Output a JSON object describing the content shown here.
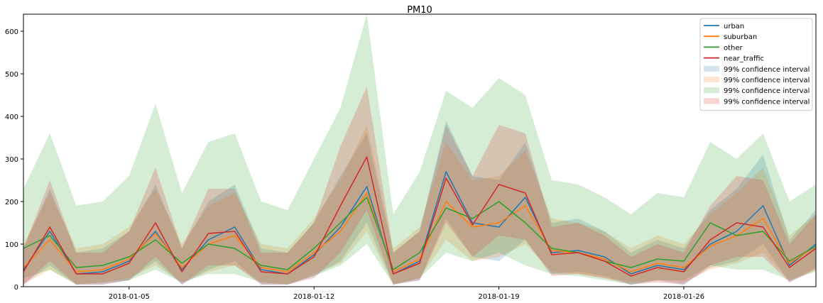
{
  "chart_data": {
    "type": "line",
    "title": "PM10",
    "xlabel": "",
    "ylabel": "",
    "x_range": [
      "2018-01-01",
      "2018-01-31"
    ],
    "ylim": [
      0,
      640
    ],
    "y_ticks": [
      0,
      100,
      200,
      300,
      400,
      500,
      600
    ],
    "x_ticks": [
      "2018-01-05",
      "2018-01-12",
      "2018-01-19",
      "2018-01-26"
    ],
    "grid": false,
    "legend_position": "top-right",
    "legend": {
      "lines": [
        "urban",
        "suburban",
        "other",
        "near_traffic"
      ],
      "bands": [
        "99% confidence interval",
        "99% confidence interval",
        "99% confidence interval",
        "99% confidence interval"
      ]
    },
    "colors": {
      "urban": "#1f77b4",
      "suburban": "#ff7f0e",
      "other": "#2ca02c",
      "near_traffic": "#d62728"
    },
    "series": [
      {
        "name": "urban",
        "x": [
          "2018-01-01",
          "2018-01-02",
          "2018-01-03",
          "2018-01-04",
          "2018-01-05",
          "2018-01-06",
          "2018-01-07",
          "2018-01-08",
          "2018-01-09",
          "2018-01-10",
          "2018-01-11",
          "2018-01-12",
          "2018-01-13",
          "2018-01-14",
          "2018-01-15",
          "2018-01-16",
          "2018-01-17",
          "2018-01-18",
          "2018-01-19",
          "2018-01-20",
          "2018-01-21",
          "2018-01-22",
          "2018-01-23",
          "2018-01-24",
          "2018-01-25",
          "2018-01-26",
          "2018-01-27",
          "2018-01-28",
          "2018-01-29",
          "2018-01-30",
          "2018-01-31"
        ],
        "values": [
          40,
          130,
          30,
          35,
          60,
          130,
          40,
          110,
          140,
          40,
          30,
          75,
          140,
          235,
          30,
          60,
          270,
          150,
          140,
          210,
          80,
          85,
          70,
          30,
          50,
          40,
          100,
          130,
          190,
          50,
          100
        ]
      },
      {
        "name": "suburban",
        "x": [
          "2018-01-01",
          "2018-01-02",
          "2018-01-03",
          "2018-01-04",
          "2018-01-05",
          "2018-01-06",
          "2018-01-07",
          "2018-01-08",
          "2018-01-09",
          "2018-01-10",
          "2018-01-11",
          "2018-01-12",
          "2018-01-13",
          "2018-01-14",
          "2018-01-15",
          "2018-01-16",
          "2018-01-17",
          "2018-01-18",
          "2018-01-19",
          "2018-01-20",
          "2018-01-21",
          "2018-01-22",
          "2018-01-23",
          "2018-01-24",
          "2018-01-25",
          "2018-01-26",
          "2018-01-27",
          "2018-01-28",
          "2018-01-29",
          "2018-01-30",
          "2018-01-31"
        ],
        "values": [
          45,
          110,
          35,
          40,
          65,
          125,
          45,
          100,
          120,
          45,
          35,
          80,
          130,
          220,
          35,
          65,
          200,
          140,
          150,
          190,
          85,
          80,
          65,
          35,
          55,
          45,
          95,
          120,
          160,
          55,
          95
        ]
      },
      {
        "name": "other",
        "x": [
          "2018-01-01",
          "2018-01-02",
          "2018-01-03",
          "2018-01-04",
          "2018-01-05",
          "2018-01-06",
          "2018-01-07",
          "2018-01-08",
          "2018-01-09",
          "2018-01-10",
          "2018-01-11",
          "2018-01-12",
          "2018-01-13",
          "2018-01-14",
          "2018-01-15",
          "2018-01-16",
          "2018-01-17",
          "2018-01-18",
          "2018-01-19",
          "2018-01-20",
          "2018-01-21",
          "2018-01-22",
          "2018-01-23",
          "2018-01-24",
          "2018-01-25",
          "2018-01-26",
          "2018-01-27",
          "2018-01-28",
          "2018-01-29",
          "2018-01-30",
          "2018-01-31"
        ],
        "values": [
          90,
          120,
          45,
          50,
          70,
          110,
          55,
          100,
          90,
          50,
          40,
          90,
          150,
          210,
          40,
          80,
          185,
          160,
          200,
          150,
          90,
          80,
          60,
          45,
          65,
          60,
          150,
          120,
          130,
          60,
          95
        ]
      },
      {
        "name": "near_traffic",
        "x": [
          "2018-01-01",
          "2018-01-02",
          "2018-01-03",
          "2018-01-04",
          "2018-01-05",
          "2018-01-06",
          "2018-01-07",
          "2018-01-08",
          "2018-01-09",
          "2018-01-10",
          "2018-01-11",
          "2018-01-12",
          "2018-01-13",
          "2018-01-14",
          "2018-01-15",
          "2018-01-16",
          "2018-01-17",
          "2018-01-18",
          "2018-01-19",
          "2018-01-20",
          "2018-01-21",
          "2018-01-22",
          "2018-01-23",
          "2018-01-24",
          "2018-01-25",
          "2018-01-26",
          "2018-01-27",
          "2018-01-28",
          "2018-01-29",
          "2018-01-30",
          "2018-01-31"
        ],
        "values": [
          35,
          140,
          30,
          30,
          55,
          150,
          35,
          125,
          130,
          35,
          30,
          70,
          190,
          305,
          30,
          55,
          255,
          145,
          240,
          220,
          75,
          80,
          60,
          25,
          45,
          35,
          110,
          150,
          140,
          45,
          90
        ]
      }
    ],
    "confidence_bands": [
      {
        "series": "urban",
        "lower": [
          5,
          50,
          5,
          5,
          15,
          60,
          5,
          40,
          60,
          5,
          5,
          25,
          60,
          150,
          5,
          15,
          160,
          70,
          60,
          110,
          30,
          35,
          25,
          5,
          15,
          5,
          45,
          60,
          100,
          10,
          45
        ],
        "upper": [
          90,
          230,
          80,
          90,
          130,
          240,
          90,
          200,
          240,
          90,
          80,
          150,
          260,
          360,
          80,
          130,
          390,
          260,
          250,
          340,
          150,
          160,
          130,
          80,
          110,
          90,
          180,
          230,
          310,
          110,
          180
        ]
      },
      {
        "series": "suburban",
        "lower": [
          5,
          40,
          5,
          10,
          20,
          50,
          10,
          35,
          50,
          10,
          5,
          30,
          55,
          130,
          5,
          20,
          110,
          60,
          70,
          100,
          35,
          30,
          20,
          10,
          15,
          10,
          40,
          55,
          80,
          15,
          40
        ],
        "upper": [
          100,
          220,
          90,
          100,
          140,
          230,
          100,
          190,
          220,
          100,
          90,
          160,
          250,
          380,
          90,
          140,
          340,
          250,
          260,
          320,
          160,
          150,
          130,
          90,
          120,
          100,
          170,
          220,
          280,
          120,
          170
        ]
      },
      {
        "series": "other",
        "lower": [
          20,
          40,
          5,
          10,
          15,
          40,
          10,
          30,
          30,
          10,
          5,
          25,
          50,
          100,
          5,
          20,
          80,
          60,
          80,
          50,
          30,
          25,
          15,
          5,
          15,
          15,
          50,
          40,
          40,
          15,
          35
        ],
        "upper": [
          230,
          360,
          190,
          200,
          260,
          430,
          220,
          340,
          360,
          200,
          180,
          300,
          420,
          640,
          170,
          270,
          460,
          420,
          490,
          450,
          250,
          240,
          210,
          170,
          220,
          210,
          340,
          300,
          360,
          200,
          240
        ]
      },
      {
        "series": "near_traffic",
        "lower": [
          5,
          60,
          5,
          5,
          15,
          70,
          5,
          50,
          50,
          5,
          5,
          20,
          80,
          180,
          5,
          15,
          150,
          70,
          120,
          110,
          25,
          30,
          20,
          5,
          10,
          5,
          50,
          70,
          70,
          10,
          40
        ],
        "upper": [
          90,
          250,
          80,
          80,
          130,
          280,
          90,
          230,
          230,
          80,
          80,
          150,
          330,
          470,
          80,
          130,
          380,
          260,
          380,
          360,
          140,
          150,
          120,
          70,
          100,
          80,
          190,
          260,
          250,
          100,
          170
        ]
      }
    ]
  }
}
